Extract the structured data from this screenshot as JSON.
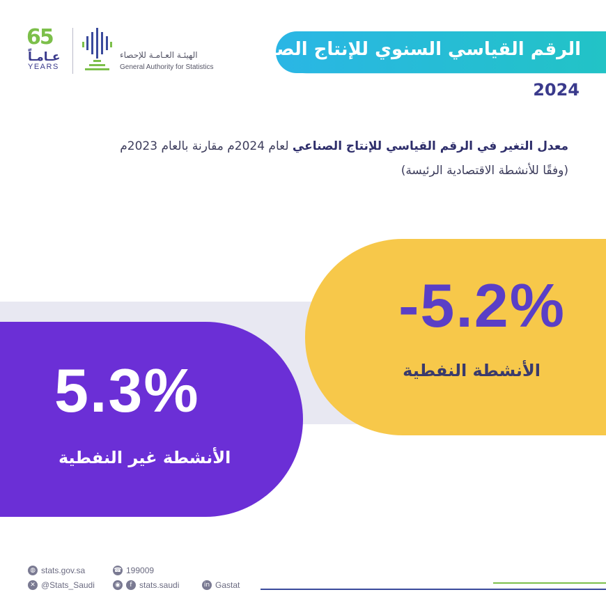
{
  "logo": {
    "anniversary_number": "65",
    "anniversary_arabic": "عـامـاً",
    "anniversary_english": "YEARS",
    "authority_arabic": "الهيئـة العـامـة للإحصاء",
    "authority_english": "General Authority for Statistics"
  },
  "header": {
    "title": "الرقم القياسي السنوي للإنتاج الصناعي",
    "year": "2024"
  },
  "description": {
    "bold_part": "معدل التغير في الرقم القياسي للإنتاج الصناعي",
    "normal_part": "لعام 2024م مقارنة بالعام 2023م",
    "line2": "(وفقًا للأنشطة الاقتصادية الرئيسة)"
  },
  "cards": {
    "oil": {
      "value": "-5.2%",
      "label": "الأنشطة النفطية"
    },
    "non_oil": {
      "value": "5.3%",
      "label": "الأنشطة غير النفطية"
    }
  },
  "footer": {
    "website": "stats.gov.sa",
    "phone": "199009",
    "twitter": "@Stats_Saudi",
    "instagram_facebook": "stats.saudi",
    "linkedin": "Gastat"
  },
  "colors": {
    "banner": "#2ab6e5",
    "yellow_card": "#f7c84a",
    "purple_card": "#6b2fd6",
    "strip": "#e8e8f2",
    "accent_green": "#7cbf4a",
    "navy": "#3a3a8c"
  }
}
